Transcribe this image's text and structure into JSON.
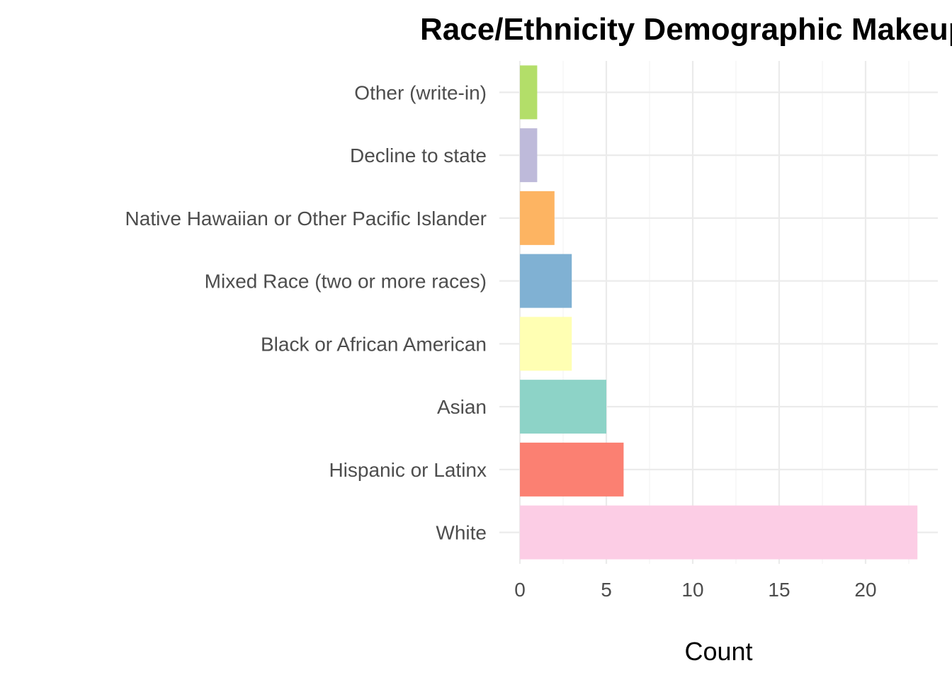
{
  "chart_data": {
    "type": "bar",
    "orientation": "horizontal",
    "title": "Race/Ethnicity Demographic Makeup",
    "xlabel": "Count",
    "ylabel": "",
    "categories": [
      "White",
      "Hispanic or Latinx",
      "Asian",
      "Black or African American",
      "Mixed Race (two or more races)",
      "Native Hawaiian or Other Pacific Islander",
      "Decline to state",
      "Other (write-in)"
    ],
    "values": [
      23,
      6,
      5,
      3,
      3,
      2,
      1,
      1
    ],
    "colors": [
      "#FCCDE5",
      "#FB8072",
      "#8DD3C7",
      "#FFFFB3",
      "#80B1D3",
      "#FDB462",
      "#BEBADA",
      "#B3DE69"
    ],
    "xlim": [
      0,
      24
    ],
    "x_ticks": [
      0,
      5,
      10,
      15,
      20
    ],
    "grid": true,
    "legend": "none"
  }
}
